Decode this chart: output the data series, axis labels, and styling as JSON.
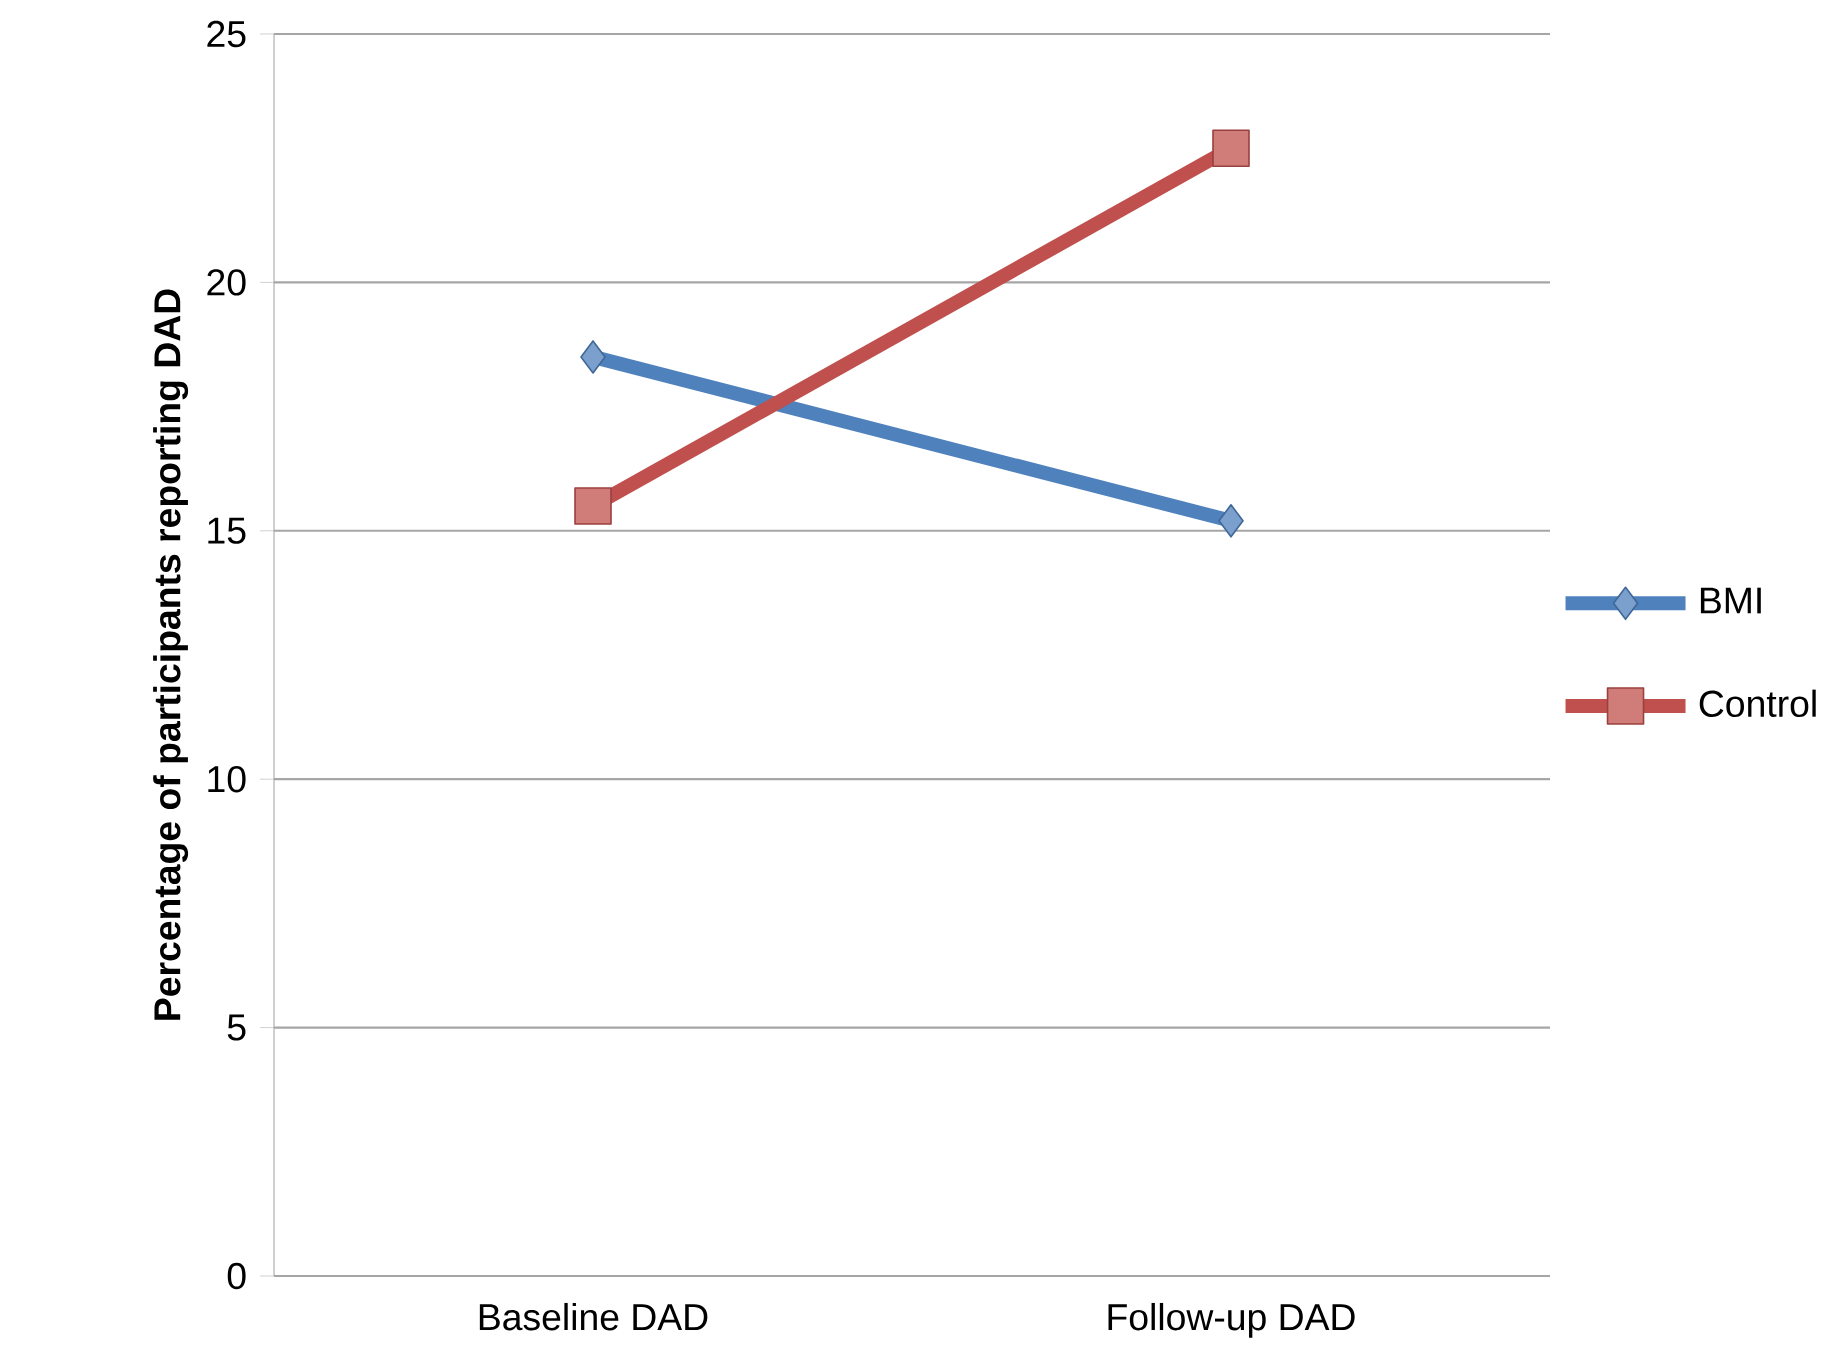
{
  "chart_data": {
    "type": "line",
    "ylabel": "Percentage of participants reporting DAD",
    "categories": [
      "Baseline DAD",
      "Follow-up DAD"
    ],
    "series": [
      {
        "name": "BMI",
        "color": "#4f81bd",
        "marker": "diamond",
        "values": [
          18.5,
          15.2
        ]
      },
      {
        "name": "Control",
        "color": "#c0504d",
        "marker": "square",
        "values": [
          15.5,
          22.7
        ]
      }
    ],
    "ylim": [
      0,
      25
    ],
    "yticks": [
      0,
      5,
      10,
      15,
      20,
      25
    ],
    "grid": "y",
    "legend": "right",
    "line_style": "solid"
  }
}
